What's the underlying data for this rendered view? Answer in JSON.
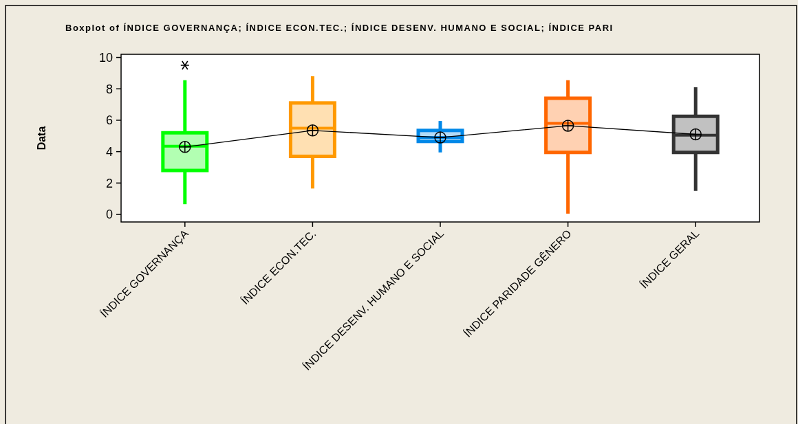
{
  "chart_data": {
    "type": "box",
    "title": "Boxplot of ÍNDICE GOVERNANÇA; ÍNDICE ECON.TEC.; ÍNDICE DESENV. HUMANO E SOCIAL; ÍNDICE PARI",
    "ylabel": "Data",
    "categories": [
      "ÍNDICE GOVERNANÇA",
      "ÍNDICE ECON.TEC.",
      "ÍNDICE DESENV. HUMANO E SOCIAL",
      "ÍNDICE PARIDADE GÊNERO",
      "ÍNDICE GERAL"
    ],
    "colors": [
      "#00ff00",
      "#ff9900",
      "#0088e8",
      "#ff6600",
      "#333333"
    ],
    "boxes": [
      {
        "low": 0.65,
        "q1": 2.8,
        "median": 4.35,
        "q3": 5.2,
        "high": 8.55,
        "outliers": [
          9.5
        ]
      },
      {
        "low": 1.65,
        "q1": 3.7,
        "median": 5.5,
        "q3": 7.1,
        "high": 8.8
      },
      {
        "low": 3.95,
        "q1": 4.65,
        "median": 4.9,
        "q3": 5.35,
        "high": 5.95
      },
      {
        "low": 0.05,
        "q1": 3.95,
        "median": 5.8,
        "q3": 7.4,
        "high": 8.55
      },
      {
        "low": 1.5,
        "q1": 3.95,
        "median": 5.05,
        "q3": 6.25,
        "high": 8.1
      }
    ],
    "series": [
      {
        "type": "line",
        "color": "#000000",
        "values": [
          4.3,
          5.35,
          4.9,
          5.65,
          5.1
        ]
      }
    ],
    "marker": "circle",
    "ylim": [
      -0.48,
      10.2
    ],
    "yticks": [
      0,
      2,
      4,
      6,
      8,
      10
    ],
    "grid": false
  }
}
